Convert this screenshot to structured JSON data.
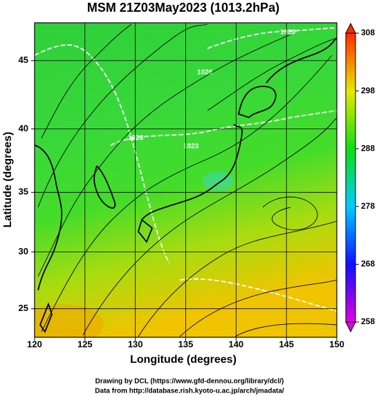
{
  "chart_data": {
    "type": "map",
    "title": "MSM 21Z03May2023 (1013.2hPa)",
    "xlabel": "Longitude (degrees)",
    "ylabel": "Latitude  (degrees)",
    "xlim": [
      120,
      150
    ],
    "ylim": [
      22.4,
      47.6
    ],
    "xticks": [
      120,
      125,
      130,
      135,
      140,
      145,
      150
    ],
    "yticks": [
      25,
      30,
      35,
      40,
      45
    ],
    "projection": "mercator",
    "grid": true,
    "isobar_labels": [
      "1020",
      "1023",
      "1023",
      "1026"
    ],
    "colorbar": {
      "lim": [
        258,
        308
      ],
      "ticks": [
        258,
        268,
        278,
        288,
        298,
        308
      ]
    },
    "credits": [
      "Drawing by DCL (https://www.gfd-dennou.org/library/dcl/)",
      "Data from http://database.rish.kyoto-u.ac.jp/arch/jmadata/"
    ]
  }
}
